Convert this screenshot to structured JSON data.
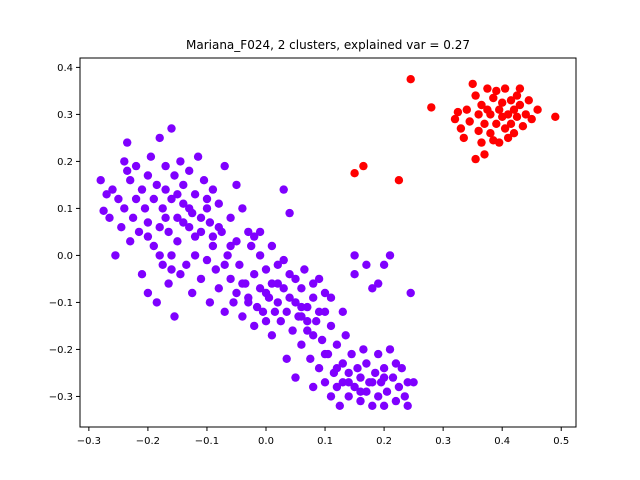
{
  "chart_data": {
    "type": "scatter",
    "title": "Mariana_F024, 2 clusters, explained var = 0.27",
    "xlabel": "",
    "ylabel": "",
    "xlim": [
      -0.315,
      0.525
    ],
    "ylim": [
      -0.365,
      0.42
    ],
    "xticks": [
      -0.3,
      -0.2,
      -0.1,
      0.0,
      0.1,
      0.2,
      0.3,
      0.4,
      0.5
    ],
    "xtick_labels": [
      "−0.3",
      "−0.2",
      "−0.1",
      "0.0",
      "0.1",
      "0.2",
      "0.3",
      "0.4",
      "0.5"
    ],
    "yticks": [
      -0.3,
      -0.2,
      -0.1,
      0.0,
      0.1,
      0.2,
      0.3,
      0.4
    ],
    "ytick_labels": [
      "−0.3",
      "−0.2",
      "−0.1",
      "0.0",
      "0.1",
      "0.2",
      "0.3",
      "0.4"
    ],
    "grid": false,
    "legend": "none",
    "series": [
      {
        "color": "#7f00ff",
        "points": [
          [
            -0.28,
            0.16
          ],
          [
            -0.275,
            0.095
          ],
          [
            -0.27,
            0.13
          ],
          [
            -0.265,
            0.08
          ],
          [
            -0.26,
            0.14
          ],
          [
            -0.255,
            0.0
          ],
          [
            -0.25,
            0.12
          ],
          [
            -0.245,
            0.06
          ],
          [
            -0.24,
            0.2
          ],
          [
            -0.24,
            0.1
          ],
          [
            -0.235,
            0.18
          ],
          [
            -0.235,
            0.24
          ],
          [
            -0.23,
            0.03
          ],
          [
            -0.23,
            0.16
          ],
          [
            -0.225,
            0.08
          ],
          [
            -0.22,
            0.12
          ],
          [
            -0.22,
            0.19
          ],
          [
            -0.215,
            0.05
          ],
          [
            -0.21,
            0.14
          ],
          [
            -0.21,
            -0.04
          ],
          [
            -0.205,
            0.1
          ],
          [
            -0.2,
            0.07
          ],
          [
            -0.2,
            0.17
          ],
          [
            -0.2,
            -0.08
          ],
          [
            -0.195,
            0.21
          ],
          [
            -0.19,
            0.12
          ],
          [
            -0.19,
            0.02
          ],
          [
            -0.185,
            -0.1
          ],
          [
            -0.185,
            0.15
          ],
          [
            -0.18,
            0.06
          ],
          [
            -0.18,
            0.25
          ],
          [
            -0.175,
            0.1
          ],
          [
            -0.175,
            -0.02
          ],
          [
            -0.17,
            0.19
          ],
          [
            -0.17,
            0.14
          ],
          [
            -0.165,
            -0.06
          ],
          [
            -0.165,
            0.05
          ],
          [
            -0.16,
            0.27
          ],
          [
            -0.16,
            0.12
          ],
          [
            -0.16,
            0.0
          ],
          [
            -0.155,
            0.17
          ],
          [
            -0.155,
            -0.13
          ],
          [
            -0.15,
            0.08
          ],
          [
            -0.15,
            0.03
          ],
          [
            -0.145,
            0.2
          ],
          [
            -0.145,
            -0.04
          ],
          [
            -0.14,
            0.11
          ],
          [
            -0.14,
            0.15
          ],
          [
            -0.135,
            -0.02
          ],
          [
            -0.13,
            0.06
          ],
          [
            -0.13,
            0.18
          ],
          [
            -0.125,
            0.09
          ],
          [
            -0.125,
            -0.08
          ],
          [
            -0.12,
            0.13
          ],
          [
            -0.12,
            0.0
          ],
          [
            -0.115,
            0.21
          ],
          [
            -0.11,
            0.05
          ],
          [
            -0.11,
            -0.05
          ],
          [
            -0.105,
            0.16
          ],
          [
            -0.1,
            0.1
          ],
          [
            -0.1,
            -0.01
          ],
          [
            -0.095,
            0.07
          ],
          [
            -0.095,
            -0.1
          ],
          [
            -0.09,
            0.14
          ],
          [
            -0.09,
            0.02
          ],
          [
            -0.085,
            -0.03
          ],
          [
            -0.08,
            0.11
          ],
          [
            -0.08,
            -0.07
          ],
          [
            -0.075,
            0.05
          ],
          [
            -0.07,
            0.19
          ],
          [
            -0.07,
            -0.12
          ],
          [
            -0.065,
            0.0
          ],
          [
            -0.06,
            0.08
          ],
          [
            -0.06,
            -0.05
          ],
          [
            -0.055,
            -0.1
          ],
          [
            -0.05,
            0.03
          ],
          [
            -0.05,
            0.15
          ],
          [
            -0.045,
            -0.02
          ],
          [
            -0.04,
            0.1
          ],
          [
            -0.04,
            -0.13
          ],
          [
            -0.035,
            -0.06
          ],
          [
            -0.03,
            0.05
          ],
          [
            -0.03,
            -0.09
          ],
          [
            -0.025,
            0.02
          ],
          [
            -0.02,
            -0.04
          ],
          [
            -0.02,
            -0.15
          ],
          [
            -0.015,
            -0.11
          ],
          [
            -0.01,
            0.0
          ],
          [
            -0.01,
            -0.07
          ],
          [
            -0.005,
            -0.12
          ],
          [
            0.0,
            -0.03
          ],
          [
            0.0,
            -0.14
          ],
          [
            0.005,
            -0.09
          ],
          [
            0.01,
            -0.06
          ],
          [
            0.01,
            -0.17
          ],
          [
            0.015,
            -0.12
          ],
          [
            0.02,
            -0.1
          ],
          [
            0.02,
            -0.02
          ],
          [
            0.025,
            -0.14
          ],
          [
            0.03,
            0.14
          ],
          [
            0.03,
            -0.07
          ],
          [
            0.035,
            -0.22
          ],
          [
            0.035,
            -0.12
          ],
          [
            0.04,
            0.09
          ],
          [
            0.04,
            -0.04
          ],
          [
            0.045,
            -0.16
          ],
          [
            0.05,
            -0.1
          ],
          [
            0.05,
            -0.26
          ],
          [
            0.055,
            -0.13
          ],
          [
            0.06,
            -0.07
          ],
          [
            0.06,
            -0.19
          ],
          [
            0.065,
            -0.03
          ],
          [
            0.07,
            -0.11
          ],
          [
            0.07,
            -0.16
          ],
          [
            0.075,
            -0.22
          ],
          [
            0.08,
            -0.09
          ],
          [
            0.08,
            -0.28
          ],
          [
            0.085,
            -0.14
          ],
          [
            0.09,
            -0.05
          ],
          [
            0.09,
            -0.24
          ],
          [
            0.095,
            -0.18
          ],
          [
            0.1,
            -0.12
          ],
          [
            0.1,
            -0.27
          ],
          [
            0.105,
            -0.21
          ],
          [
            0.11,
            -0.3
          ],
          [
            0.11,
            -0.15
          ],
          [
            0.115,
            -0.25
          ],
          [
            0.12,
            -0.28
          ],
          [
            0.12,
            -0.19
          ],
          [
            0.125,
            -0.32
          ],
          [
            0.13,
            -0.23
          ],
          [
            0.13,
            -0.27
          ],
          [
            0.135,
            -0.17
          ],
          [
            0.14,
            -0.3
          ],
          [
            0.14,
            -0.25
          ],
          [
            0.145,
            -0.21
          ],
          [
            0.15,
            -0.28
          ],
          [
            0.15,
            -0.04
          ],
          [
            0.155,
            -0.24
          ],
          [
            0.16,
            -0.31
          ],
          [
            0.16,
            -0.26
          ],
          [
            0.165,
            -0.2
          ],
          [
            0.17,
            -0.29
          ],
          [
            0.17,
            -0.23
          ],
          [
            0.175,
            -0.27
          ],
          [
            0.18,
            -0.32
          ],
          [
            0.18,
            -0.07
          ],
          [
            0.185,
            -0.25
          ],
          [
            0.19,
            -0.21
          ],
          [
            0.19,
            -0.3
          ],
          [
            0.195,
            -0.27
          ],
          [
            0.2,
            -0.24
          ],
          [
            0.2,
            -0.32
          ],
          [
            0.205,
            -0.29
          ],
          [
            0.21,
            -0.2
          ],
          [
            0.215,
            -0.26
          ],
          [
            0.22,
            -0.31
          ],
          [
            0.22,
            -0.23
          ],
          [
            0.225,
            -0.28
          ],
          [
            0.23,
            -0.24
          ],
          [
            0.235,
            -0.3
          ],
          [
            0.24,
            -0.27
          ],
          [
            0.24,
            -0.32
          ],
          [
            0.245,
            -0.08
          ],
          [
            0.25,
            -0.27
          ],
          [
            0.15,
            0.0
          ],
          [
            0.17,
            -0.02
          ],
          [
            0.19,
            -0.06
          ],
          [
            0.2,
            -0.02
          ],
          [
            0.21,
            0.0
          ],
          [
            -0.2,
            0.04
          ],
          [
            -0.18,
            0.0
          ],
          [
            -0.16,
            -0.03
          ],
          [
            -0.14,
            0.07
          ],
          [
            -0.12,
            0.04
          ],
          [
            -0.1,
            0.12
          ],
          [
            -0.08,
            0.06
          ],
          [
            -0.06,
            0.02
          ],
          [
            -0.04,
            -0.06
          ],
          [
            -0.02,
            0.04
          ],
          [
            -0.17,
            0.08
          ],
          [
            -0.15,
            0.13
          ],
          [
            -0.13,
            0.1
          ],
          [
            -0.11,
            0.08
          ],
          [
            -0.09,
            0.04
          ],
          [
            -0.07,
            -0.02
          ],
          [
            -0.05,
            -0.08
          ],
          [
            -0.03,
            -0.1
          ],
          [
            0.0,
            -0.08
          ],
          [
            0.02,
            -0.06
          ],
          [
            0.04,
            -0.09
          ],
          [
            0.06,
            -0.13
          ],
          [
            0.08,
            -0.17
          ],
          [
            0.1,
            -0.21
          ],
          [
            0.12,
            -0.24
          ],
          [
            0.14,
            -0.27
          ],
          [
            0.16,
            -0.29
          ],
          [
            0.18,
            -0.27
          ],
          [
            0.2,
            -0.26
          ],
          [
            0.06,
            -0.11
          ],
          [
            0.07,
            -0.14
          ],
          [
            0.09,
            -0.12
          ],
          [
            0.11,
            -0.09
          ],
          [
            0.13,
            -0.12
          ],
          [
            0.1,
            -0.08
          ],
          [
            0.08,
            -0.06
          ],
          [
            0.05,
            -0.05
          ],
          [
            0.03,
            -0.01
          ],
          [
            0.01,
            0.02
          ],
          [
            -0.01,
            0.05
          ]
        ]
      },
      {
        "color": "#ff0000",
        "points": [
          [
            0.245,
            0.375
          ],
          [
            0.28,
            0.315
          ],
          [
            0.15,
            0.175
          ],
          [
            0.165,
            0.19
          ],
          [
            0.225,
            0.16
          ],
          [
            0.32,
            0.29
          ],
          [
            0.325,
            0.305
          ],
          [
            0.33,
            0.27
          ],
          [
            0.335,
            0.25
          ],
          [
            0.34,
            0.31
          ],
          [
            0.345,
            0.285
          ],
          [
            0.35,
            0.365
          ],
          [
            0.355,
            0.34
          ],
          [
            0.355,
            0.205
          ],
          [
            0.36,
            0.3
          ],
          [
            0.36,
            0.265
          ],
          [
            0.365,
            0.32
          ],
          [
            0.365,
            0.24
          ],
          [
            0.37,
            0.28
          ],
          [
            0.37,
            0.215
          ],
          [
            0.375,
            0.31
          ],
          [
            0.375,
            0.355
          ],
          [
            0.38,
            0.26
          ],
          [
            0.38,
            0.3
          ],
          [
            0.385,
            0.335
          ],
          [
            0.385,
            0.245
          ],
          [
            0.39,
            0.28
          ],
          [
            0.39,
            0.35
          ],
          [
            0.395,
            0.31
          ],
          [
            0.395,
            0.24
          ],
          [
            0.4,
            0.295
          ],
          [
            0.4,
            0.325
          ],
          [
            0.405,
            0.27
          ],
          [
            0.405,
            0.355
          ],
          [
            0.41,
            0.3
          ],
          [
            0.41,
            0.25
          ],
          [
            0.415,
            0.33
          ],
          [
            0.415,
            0.28
          ],
          [
            0.42,
            0.31
          ],
          [
            0.42,
            0.26
          ],
          [
            0.425,
            0.34
          ],
          [
            0.425,
            0.295
          ],
          [
            0.43,
            0.32
          ],
          [
            0.435,
            0.275
          ],
          [
            0.44,
            0.3
          ],
          [
            0.445,
            0.33
          ],
          [
            0.45,
            0.29
          ],
          [
            0.46,
            0.31
          ],
          [
            0.49,
            0.295
          ],
          [
            0.43,
            0.355
          ]
        ]
      }
    ]
  }
}
